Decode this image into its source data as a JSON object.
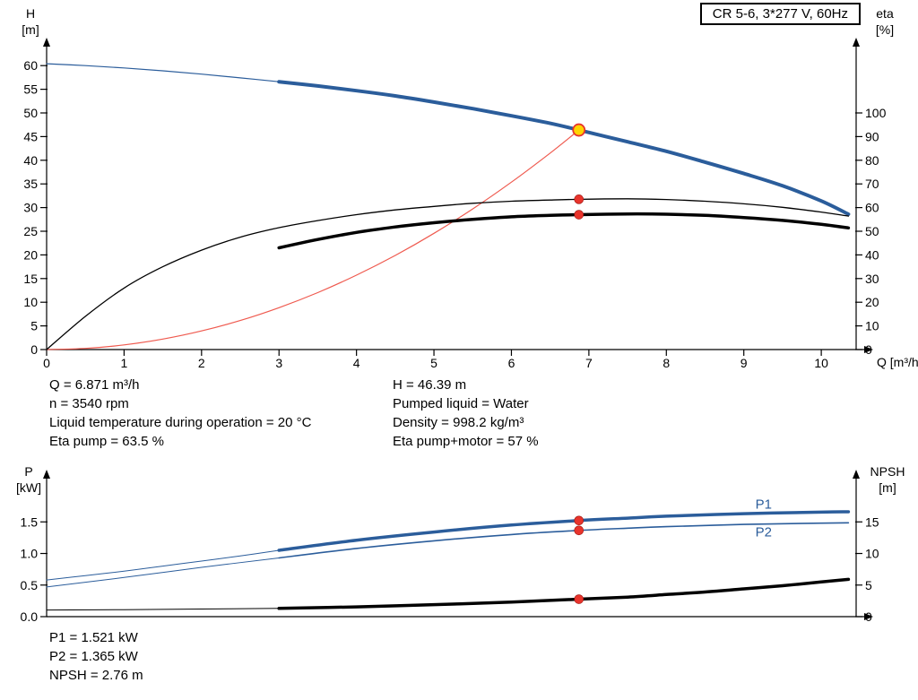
{
  "title_box": "CR 5-6, 3*277 V, 60Hz",
  "colors": {
    "curve_blue": "#2b5d9b",
    "curve_black": "#000000",
    "curve_red": "#e8342c",
    "system_curve_red": "#ef5a4f",
    "duty_yellow": "#ffd400",
    "axis": "#000000"
  },
  "top_info": {
    "col1": [
      "Q = 6.871 m³/h",
      "n = 3540 rpm",
      "Liquid temperature during operation = 20 °C",
      "Eta pump = 63.5 %"
    ],
    "col2": [
      "H = 46.39 m",
      "Pumped liquid = Water",
      "Density = 998.2 kg/m³",
      "Eta pump+motor = 57 %"
    ]
  },
  "bottom_info": [
    "P1 = 1.521 kW",
    "P2 = 1.365 kW",
    "NPSH = 2.76 m"
  ],
  "chart_data": [
    {
      "type": "line",
      "name": "head-and-efficiency",
      "x_axis": {
        "label": "Q [m³/h]",
        "min": 0,
        "max": 10.45,
        "ticks": [
          "0",
          "1",
          "2",
          "3",
          "4",
          "5",
          "6",
          "7",
          "8",
          "9",
          "10"
        ]
      },
      "y_left": {
        "label": [
          "H",
          "[m]"
        ],
        "min": 0,
        "max": 62.5,
        "ticks": [
          "0",
          "5",
          "10",
          "15",
          "20",
          "25",
          "30",
          "35",
          "40",
          "45",
          "50",
          "55",
          "60"
        ]
      },
      "y_right": {
        "label": [
          "eta",
          "[%]"
        ],
        "min": 0,
        "max": 125,
        "ticks": [
          "0",
          "10",
          "20",
          "30",
          "40",
          "50",
          "60",
          "70",
          "80",
          "90",
          "100"
        ]
      },
      "series": [
        {
          "name": "system-curve",
          "axis": "left",
          "color_key": "system_curve_red",
          "width": 1.2,
          "points": [
            [
              0,
              0
            ],
            [
              0.5,
              0.25
            ],
            [
              1,
              0.98
            ],
            [
              1.5,
              2.21
            ],
            [
              2,
              3.93
            ],
            [
              2.5,
              6.14
            ],
            [
              3,
              8.84
            ],
            [
              3.5,
              12.03
            ],
            [
              4,
              15.72
            ],
            [
              4.5,
              19.89
            ],
            [
              5,
              24.56
            ],
            [
              5.5,
              29.72
            ],
            [
              6,
              35.37
            ],
            [
              6.5,
              41.51
            ],
            [
              6.871,
              46.39
            ]
          ]
        },
        {
          "name": "head-curve-lead",
          "axis": "left",
          "color_key": "curve_blue",
          "width": 1.2,
          "points": [
            [
              0,
              60.4
            ],
            [
              0.5,
              60.0
            ],
            [
              1,
              59.5
            ],
            [
              1.5,
              58.9
            ],
            [
              2,
              58.2
            ],
            [
              2.5,
              57.4
            ],
            [
              3,
              56.6
            ]
          ]
        },
        {
          "name": "head-curve",
          "axis": "left",
          "color_key": "curve_blue",
          "width": 4,
          "points": [
            [
              3,
              56.6
            ],
            [
              3.5,
              55.7
            ],
            [
              4,
              54.7
            ],
            [
              4.5,
              53.6
            ],
            [
              5,
              52.3
            ],
            [
              5.5,
              50.9
            ],
            [
              6,
              49.4
            ],
            [
              6.5,
              47.8
            ],
            [
              6.871,
              46.39
            ],
            [
              7.5,
              43.9
            ],
            [
              8,
              41.9
            ],
            [
              8.5,
              39.6
            ],
            [
              9,
              37.2
            ],
            [
              9.5,
              34.6
            ],
            [
              10,
              31.4
            ],
            [
              10.35,
              28.6
            ]
          ]
        },
        {
          "name": "eta-pump-curve",
          "axis": "right",
          "color_key": "curve_black",
          "width": 1.3,
          "points": [
            [
              0,
              0
            ],
            [
              0.5,
              14
            ],
            [
              1,
              26
            ],
            [
              1.5,
              35
            ],
            [
              2,
              42
            ],
            [
              2.5,
              47.5
            ],
            [
              3,
              51.5
            ],
            [
              3.5,
              54.5
            ],
            [
              4,
              57
            ],
            [
              4.5,
              59
            ],
            [
              5,
              60.5
            ],
            [
              5.5,
              61.8
            ],
            [
              6,
              62.7
            ],
            [
              6.5,
              63.2
            ],
            [
              6.871,
              63.5
            ],
            [
              7.5,
              63.7
            ],
            [
              8,
              63.4
            ],
            [
              8.5,
              62.7
            ],
            [
              9,
              61.6
            ],
            [
              9.5,
              60.1
            ],
            [
              10,
              58.1
            ],
            [
              10.35,
              56.4
            ]
          ]
        },
        {
          "name": "eta-pump-motor-curve",
          "axis": "right",
          "color_key": "curve_black",
          "width": 3.5,
          "points": [
            [
              3,
              43
            ],
            [
              3.5,
              46.5
            ],
            [
              4,
              49.5
            ],
            [
              4.5,
              51.8
            ],
            [
              5,
              53.6
            ],
            [
              5.5,
              55
            ],
            [
              6,
              56.1
            ],
            [
              6.5,
              56.7
            ],
            [
              6.871,
              57
            ],
            [
              7.5,
              57.3
            ],
            [
              8,
              57.2
            ],
            [
              8.5,
              56.7
            ],
            [
              9,
              55.8
            ],
            [
              9.5,
              54.6
            ],
            [
              10,
              52.9
            ],
            [
              10.35,
              51.4
            ]
          ]
        }
      ],
      "markers": [
        {
          "name": "duty-point",
          "style": "duty",
          "axis": "left",
          "x": 6.871,
          "y": 46.39
        },
        {
          "name": "eta-pump-point",
          "style": "red",
          "axis": "right",
          "x": 6.871,
          "y": 63.5
        },
        {
          "name": "eta-pump-motor-point",
          "style": "red",
          "axis": "right",
          "x": 6.871,
          "y": 57
        }
      ],
      "curve_labels": []
    },
    {
      "type": "line",
      "name": "power-and-npsh",
      "x_axis": {
        "label": "",
        "min": 0,
        "max": 10.45,
        "ticks": []
      },
      "y_left": {
        "label": [
          "P",
          "[kW]"
        ],
        "min": 0,
        "max": 2.1,
        "ticks": [
          "0.0",
          "0.5",
          "1.0",
          "1.5"
        ]
      },
      "y_right": {
        "label": [
          "NPSH",
          "[m]"
        ],
        "min": 0,
        "max": 21,
        "ticks": [
          "0",
          "5",
          "10",
          "15"
        ]
      },
      "series": [
        {
          "name": "p1-curve-lead",
          "axis": "left",
          "color_key": "curve_blue",
          "width": 1,
          "points": [
            [
              0,
              0.58
            ],
            [
              0.5,
              0.65
            ],
            [
              1,
              0.72
            ],
            [
              1.5,
              0.8
            ],
            [
              2,
              0.88
            ],
            [
              2.5,
              0.96
            ],
            [
              3,
              1.05
            ]
          ]
        },
        {
          "name": "p1-curve",
          "axis": "left",
          "color_key": "curve_blue",
          "width": 3.5,
          "points": [
            [
              3,
              1.05
            ],
            [
              4,
              1.21
            ],
            [
              5,
              1.34
            ],
            [
              6,
              1.45
            ],
            [
              6.871,
              1.521
            ],
            [
              7.5,
              1.56
            ],
            [
              8,
              1.59
            ],
            [
              9,
              1.63
            ],
            [
              10,
              1.655
            ],
            [
              10.35,
              1.66
            ]
          ]
        },
        {
          "name": "p2-curve-lead",
          "axis": "left",
          "color_key": "curve_blue",
          "width": 1,
          "points": [
            [
              0,
              0.47
            ],
            [
              1,
              0.62
            ],
            [
              2,
              0.78
            ],
            [
              3,
              0.93
            ]
          ]
        },
        {
          "name": "p2-curve",
          "axis": "left",
          "color_key": "curve_blue",
          "width": 1.6,
          "points": [
            [
              3,
              0.93
            ],
            [
              4,
              1.08
            ],
            [
              5,
              1.2
            ],
            [
              6,
              1.3
            ],
            [
              6.871,
              1.365
            ],
            [
              7.5,
              1.4
            ],
            [
              8,
              1.425
            ],
            [
              9,
              1.46
            ],
            [
              10,
              1.48
            ],
            [
              10.35,
              1.485
            ]
          ]
        },
        {
          "name": "npsh-curve-lead",
          "axis": "right",
          "color_key": "curve_black",
          "width": 1,
          "points": [
            [
              0,
              1.05
            ],
            [
              1,
              1.1
            ],
            [
              2,
              1.2
            ],
            [
              3,
              1.3
            ]
          ]
        },
        {
          "name": "npsh-curve",
          "axis": "right",
          "color_key": "curve_black",
          "width": 3.5,
          "points": [
            [
              3,
              1.3
            ],
            [
              4,
              1.55
            ],
            [
              5,
              1.9
            ],
            [
              6,
              2.3
            ],
            [
              6.871,
              2.76
            ],
            [
              7.5,
              3.1
            ],
            [
              8,
              3.5
            ],
            [
              8.5,
              3.9
            ],
            [
              9,
              4.4
            ],
            [
              9.5,
              4.9
            ],
            [
              10,
              5.5
            ],
            [
              10.35,
              5.9
            ]
          ]
        }
      ],
      "markers": [
        {
          "name": "p1-point",
          "style": "red",
          "axis": "left",
          "x": 6.871,
          "y": 1.521
        },
        {
          "name": "p2-point",
          "style": "red",
          "axis": "left",
          "x": 6.871,
          "y": 1.365
        },
        {
          "name": "npsh-point",
          "style": "red",
          "axis": "right",
          "x": 6.871,
          "y": 2.76
        }
      ],
      "curve_labels": [
        {
          "text": "P1",
          "x": 9.15,
          "y": 1.78,
          "axis": "left"
        },
        {
          "text": "P2",
          "x": 9.15,
          "y": 1.34,
          "axis": "left"
        }
      ]
    }
  ]
}
